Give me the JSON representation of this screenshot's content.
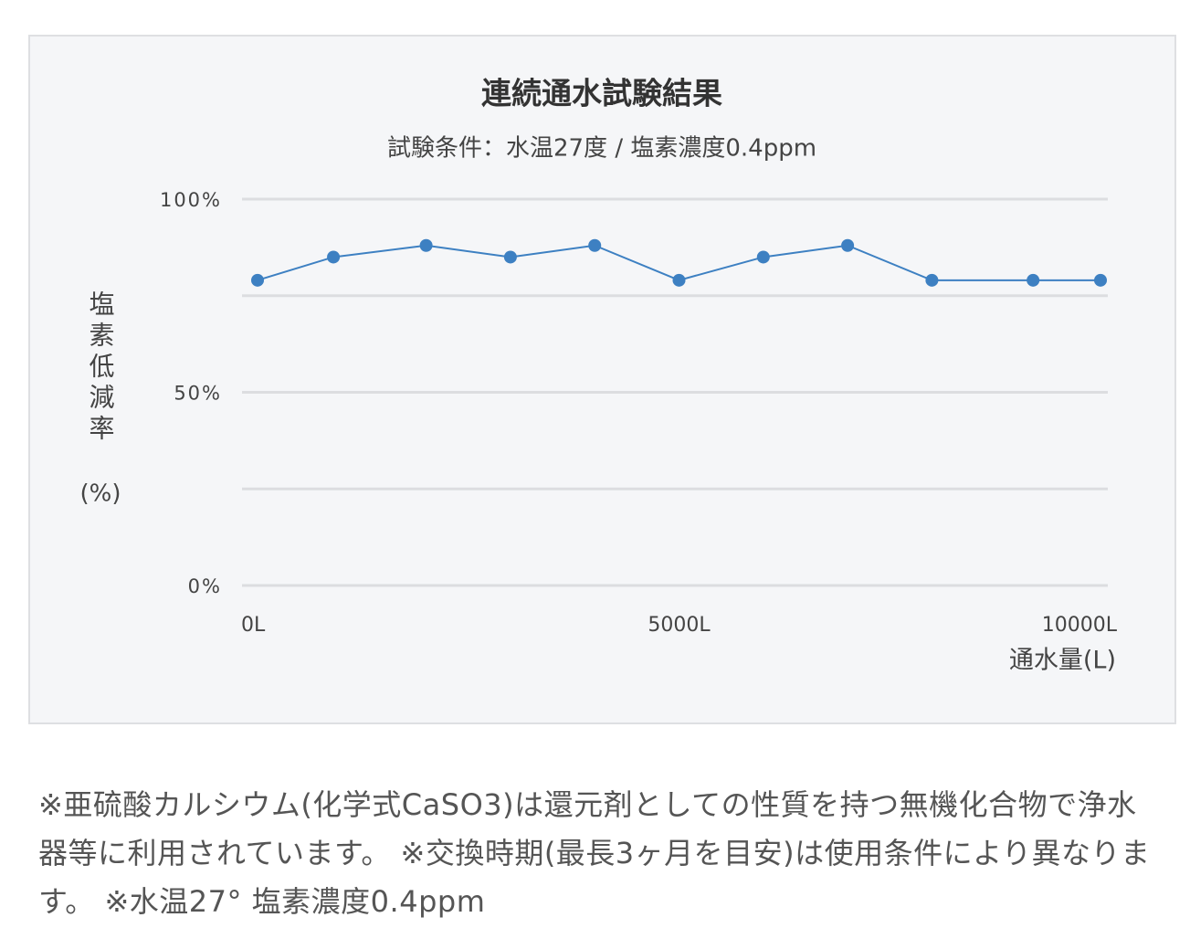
{
  "chart_data": {
    "type": "line",
    "title": "連続通水試験結果",
    "subtitle": "試験条件：水温27度 / 塩素濃度0.4ppm",
    "ylabel": "塩素低減率",
    "ylabel_unit": "(%)",
    "xlabel": "通水量(L)",
    "x": [
      0,
      900,
      2000,
      3000,
      4000,
      5000,
      6000,
      7000,
      8000,
      9200,
      10000
    ],
    "series": [
      {
        "color": "#3d80c2",
        "values": [
          79,
          85,
          88,
          85,
          88,
          79,
          85,
          88,
          79,
          79,
          79
        ]
      }
    ],
    "xlim": [
      0,
      10000
    ],
    "xticks": [
      {
        "value": 0,
        "label": "0L"
      },
      {
        "value": 5000,
        "label": "5000L"
      },
      {
        "value": 10000,
        "label": "10000L"
      }
    ],
    "ylim": [
      0,
      100
    ],
    "yticks": [
      {
        "value": 0,
        "label": "0%"
      },
      {
        "value": 50,
        "label": "50%"
      },
      {
        "value": 100,
        "label": "100%"
      }
    ],
    "minor_yticks": [
      25,
      75
    ],
    "grid": true
  },
  "note": "※亜硫酸カルシウム(化学式CaSO3)は還元剤としての性質を持つ無機化合物で浄水器等に利用されています。 ※交換時期(最長3ヶ月を目安)は使用条件により異なります。 ※水温27° 塩素濃度0.4ppm"
}
